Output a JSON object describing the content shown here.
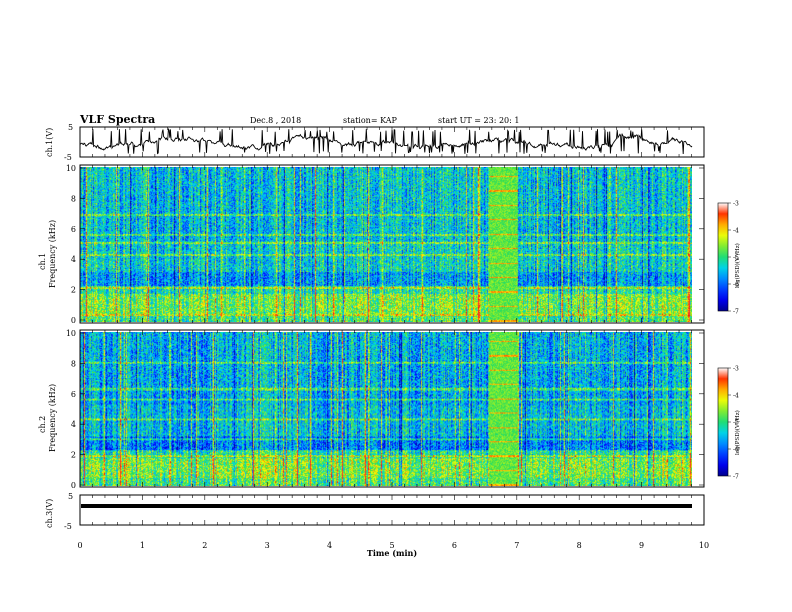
{
  "header": {
    "title": "VLF Spectra",
    "date": "Dec.8  , 2018",
    "station": "station= KAP",
    "start": "start  UT  =   23: 20: 1"
  },
  "colors": {
    "trace": "#000000",
    "colormap": [
      "#000090",
      "#0000ff",
      "#0080ff",
      "#00e0e0",
      "#20e060",
      "#90ff20",
      "#ffff00",
      "#ff8000",
      "#ff0000",
      "#ffffff"
    ]
  },
  "chart_data": [
    {
      "type": "line",
      "panel": "ch1-waveform",
      "ylabel": "ch.1(V)",
      "ylim": [
        -5,
        5
      ],
      "ytick_labels": [
        "5",
        "-5"
      ],
      "xlim": [
        0,
        10
      ]
    },
    {
      "type": "heatmap",
      "panel": "ch1-spectrogram",
      "ylabel": "ch.1\nFrequency (kHz)",
      "ylim": [
        0,
        10
      ],
      "ytick_labels": [
        "0",
        "2",
        "4",
        "6",
        "8",
        "10"
      ],
      "colorbar": {
        "label": "log(PSD)(V²/Hz)",
        "range": [
          -7,
          -3
        ],
        "tick_labels": [
          "-3",
          "-4",
          "-5",
          "-6",
          "-7"
        ]
      }
    },
    {
      "type": "heatmap",
      "panel": "ch2-spectrogram",
      "ylabel": "ch.2\nFrequency (kHz)",
      "ylim": [
        0,
        10
      ],
      "ytick_labels": [
        "0",
        "2",
        "4",
        "6",
        "8",
        "10"
      ],
      "colorbar": {
        "label": "log(PSD)(V²/Hz)",
        "range": [
          -7,
          -3
        ],
        "tick_labels": [
          "-3",
          "-4",
          "-5",
          "-6",
          "-7"
        ]
      }
    },
    {
      "type": "line",
      "panel": "ch3-waveform",
      "ylabel": "ch.3(V)",
      "ylim": [
        -5,
        5
      ],
      "ytick_labels": [
        "5",
        "-5"
      ],
      "x": [
        0,
        10
      ],
      "y": [
        0,
        0
      ],
      "xlabel": "Time  (min)",
      "xlim": [
        0,
        10
      ],
      "xtick_labels": [
        "0",
        "1",
        "2",
        "3",
        "4",
        "5",
        "6",
        "7",
        "8",
        "9",
        "10"
      ]
    }
  ]
}
